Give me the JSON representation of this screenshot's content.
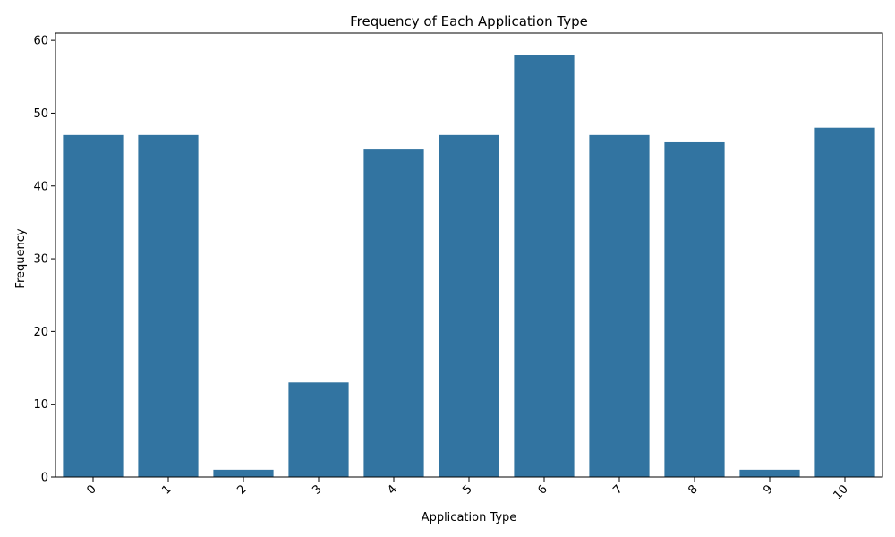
{
  "chart_data": {
    "type": "bar",
    "title": "Frequency of Each Application Type",
    "xlabel": "Application Type",
    "ylabel": "Frequency",
    "categories": [
      "0",
      "1",
      "2",
      "3",
      "4",
      "5",
      "6",
      "7",
      "8",
      "9",
      "10"
    ],
    "values": [
      47,
      47,
      1,
      13,
      45,
      47,
      58,
      47,
      46,
      1,
      48
    ],
    "ylim": [
      0,
      61
    ],
    "yticks": [
      0,
      10,
      20,
      30,
      40,
      50,
      60
    ],
    "grid": false,
    "bar_color": "#3274a1",
    "x_tick_rotation_deg": 45
  }
}
